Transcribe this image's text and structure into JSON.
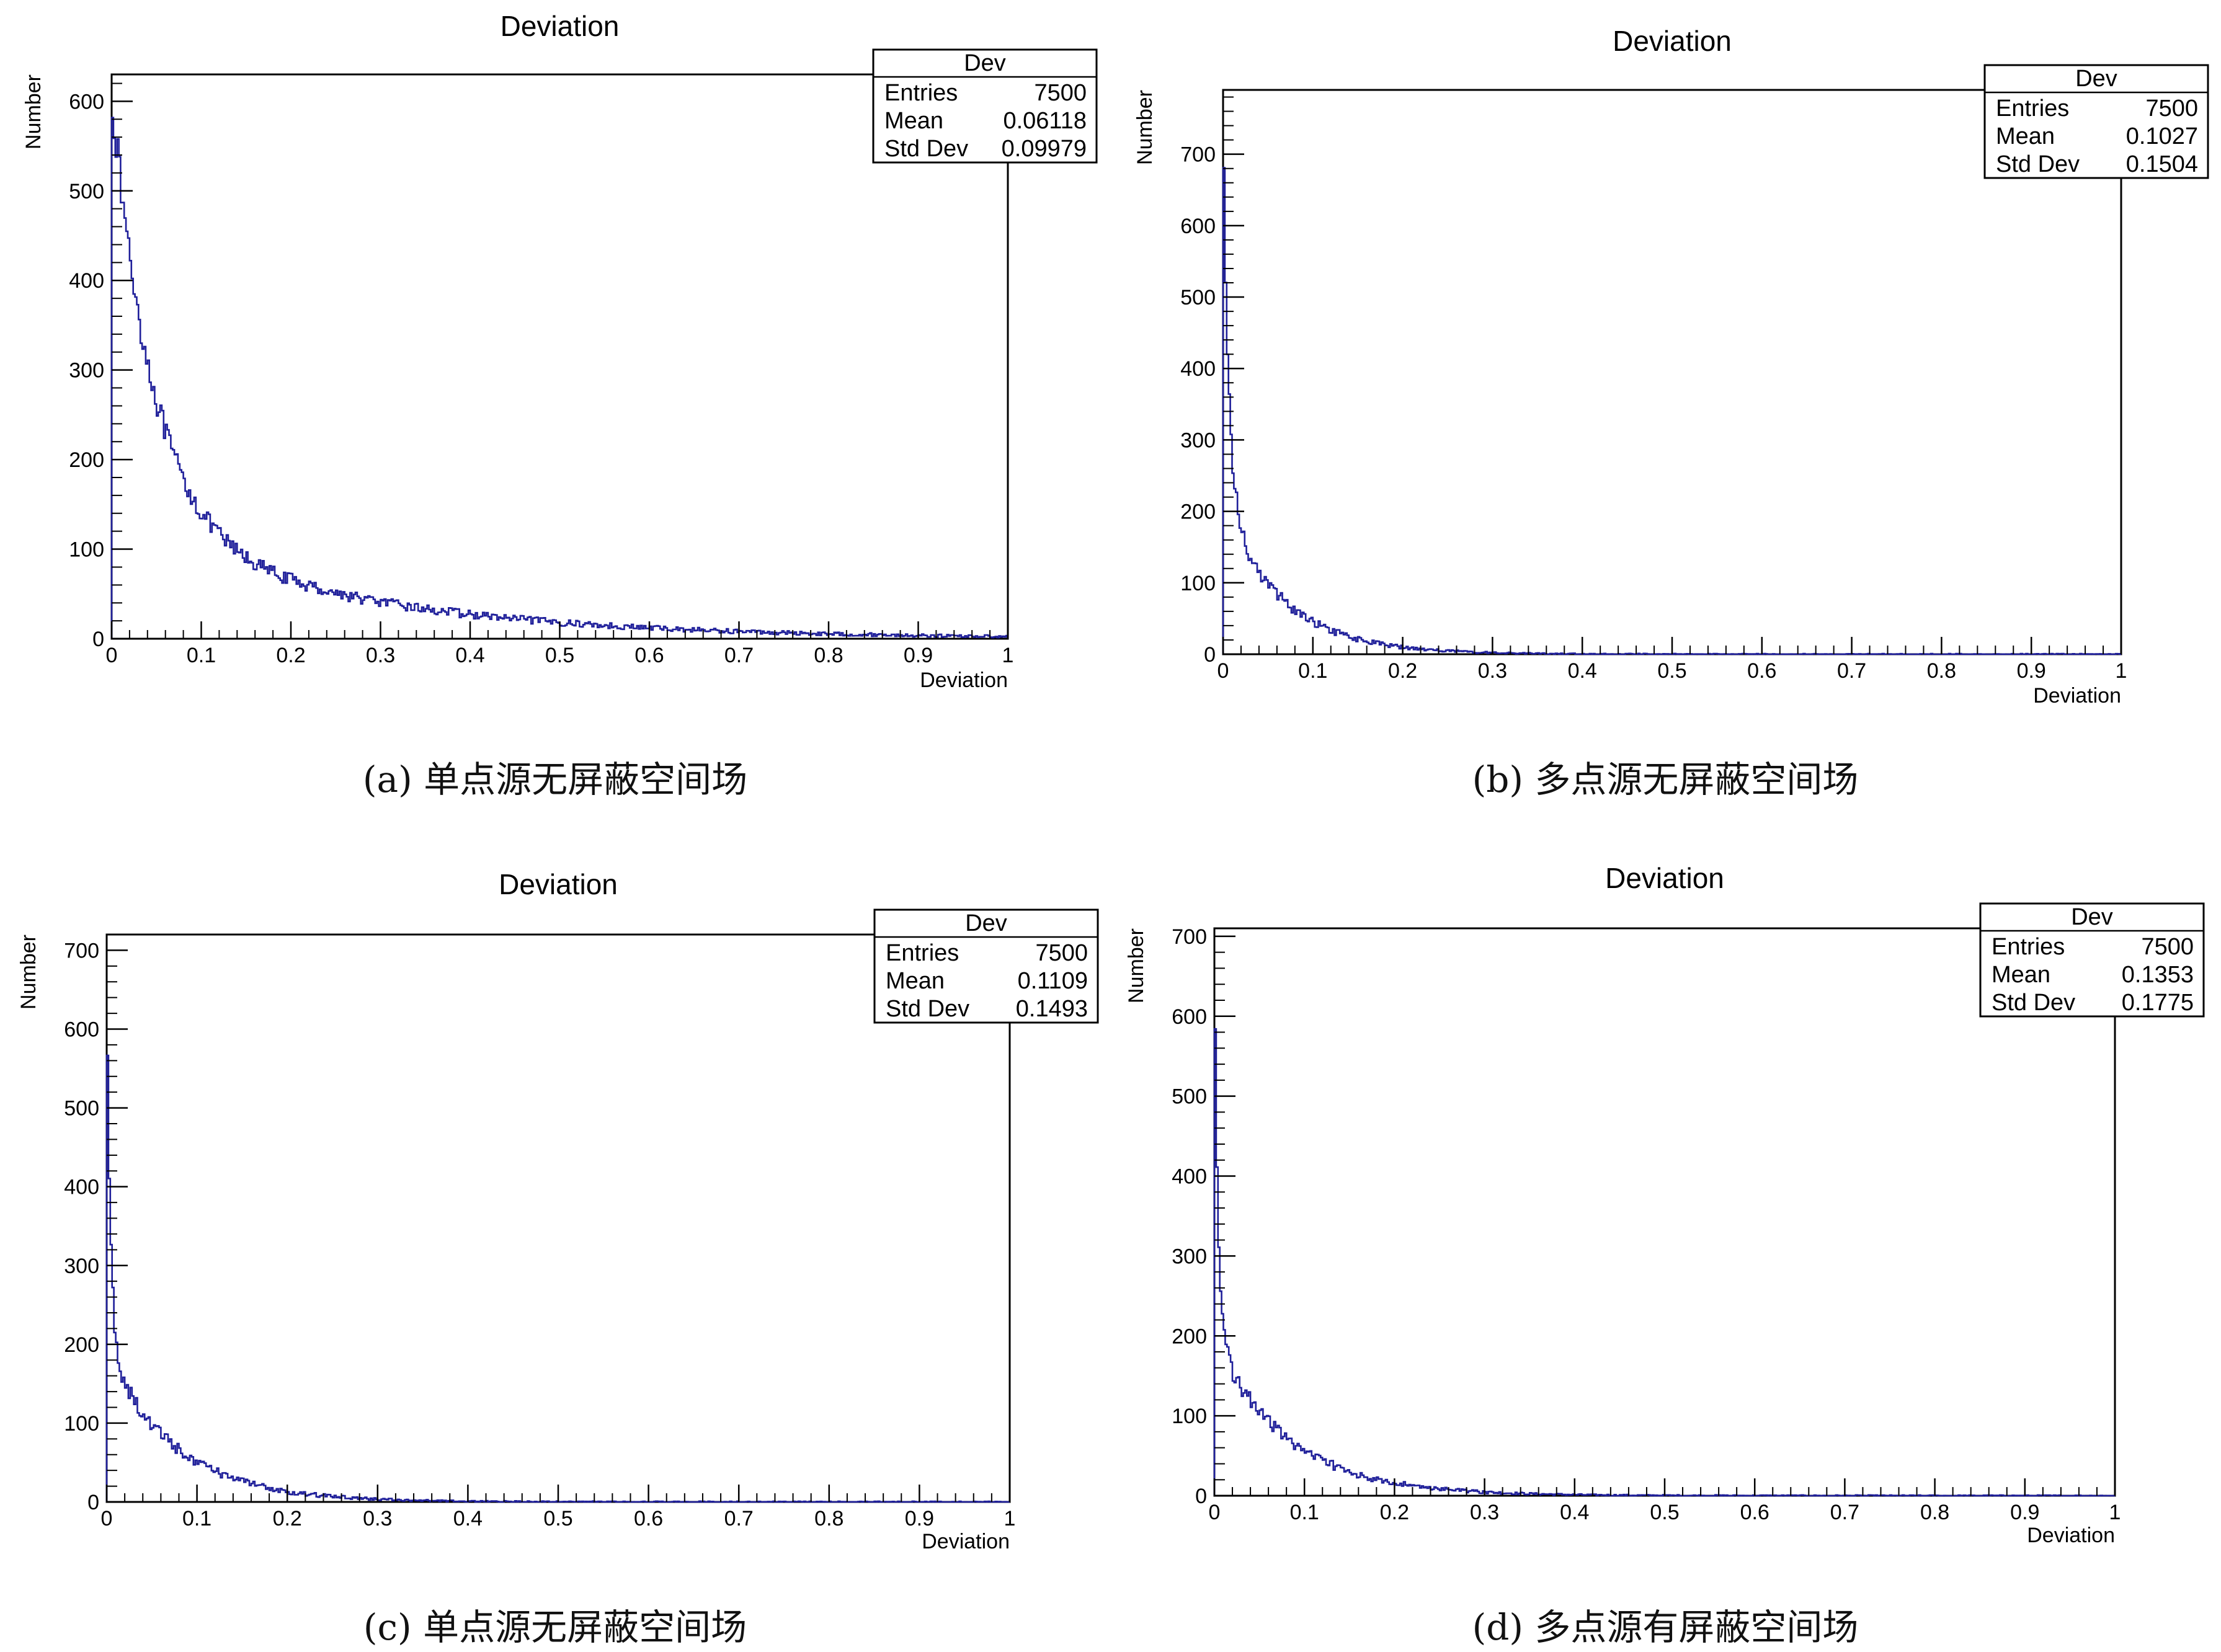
{
  "chart_data": [
    {
      "type": "bar",
      "title": "Deviation",
      "xlabel": "Deviation",
      "ylabel": "Number",
      "xlim": [
        0,
        1
      ],
      "ylim": [
        0,
        630
      ],
      "xticks": [
        "0",
        "0.1",
        "0.2",
        "0.3",
        "0.4",
        "0.5",
        "0.6",
        "0.7",
        "0.8",
        "0.9",
        "1"
      ],
      "yticks": [
        "0",
        "100",
        "200",
        "300",
        "400",
        "500",
        "600"
      ],
      "stats": {
        "name": "Dev",
        "entries_label": "Entries",
        "entries": "7500",
        "mean_label": "Mean",
        "mean": "0.06118",
        "std_label": "Std Dev",
        "std": "0.09979"
      },
      "curve": {
        "peak": 610,
        "a1": 0.78,
        "t1": 0.045,
        "a2": 0.22,
        "t2": 0.25
      },
      "caption": "(a) 单点源无屏蔽空间场"
    },
    {
      "type": "bar",
      "title": "Deviation",
      "xlabel": "Deviation",
      "ylabel": "Number",
      "xlim": [
        0,
        1
      ],
      "ylim": [
        0,
        790
      ],
      "xticks": [
        "0",
        "0.1",
        "0.2",
        "0.3",
        "0.4",
        "0.5",
        "0.6",
        "0.7",
        "0.8",
        "0.9",
        "1"
      ],
      "yticks": [
        "0",
        "100",
        "200",
        "300",
        "400",
        "500",
        "600",
        "700"
      ],
      "stats": {
        "name": "Dev",
        "entries_label": "Entries",
        "entries": "7500",
        "mean_label": "Mean",
        "mean": "0.1027",
        "std_label": "Std Dev",
        "std": "0.1504"
      },
      "curve": {
        "peak": 760,
        "a1": 0.72,
        "t1": 0.006,
        "a2": 0.28,
        "t2": 0.065
      },
      "caption": "(b) 多点源无屏蔽空间场"
    },
    {
      "type": "bar",
      "title": "Deviation",
      "xlabel": "Deviation",
      "ylabel": "Number",
      "xlim": [
        0,
        1
      ],
      "ylim": [
        0,
        720
      ],
      "xticks": [
        "0",
        "0.1",
        "0.2",
        "0.3",
        "0.4",
        "0.5",
        "0.6",
        "0.7",
        "0.8",
        "0.9",
        "1"
      ],
      "yticks": [
        "0",
        "100",
        "200",
        "300",
        "400",
        "500",
        "600",
        "700"
      ],
      "stats": {
        "name": "Dev",
        "entries_label": "Entries",
        "entries": "7500",
        "mean_label": "Mean",
        "mean": "0.1109",
        "std_label": "Std Dev",
        "std": "0.1493"
      },
      "curve": {
        "peak": 690,
        "a1": 0.72,
        "t1": 0.004,
        "a2": 0.28,
        "t2": 0.075
      },
      "caption": "(c) 单点源无屏蔽空间场"
    },
    {
      "type": "bar",
      "title": "Deviation",
      "xlabel": "Deviation",
      "ylabel": "Number",
      "xlim": [
        0,
        1
      ],
      "ylim": [
        0,
        710
      ],
      "xticks": [
        "0",
        "0.1",
        "0.2",
        "0.3",
        "0.4",
        "0.5",
        "0.6",
        "0.7",
        "0.8",
        "0.9",
        "1"
      ],
      "yticks": [
        "0",
        "100",
        "200",
        "300",
        "400",
        "500",
        "600",
        "700"
      ],
      "stats": {
        "name": "Dev",
        "entries_label": "Entries",
        "entries": "7500",
        "mean_label": "Mean",
        "mean": "0.1353",
        "std_label": "Std Dev",
        "std": "0.1775"
      },
      "curve": {
        "peak": 680,
        "a1": 0.71,
        "t1": 0.004,
        "a2": 0.29,
        "t2": 0.08
      },
      "caption": "(d) 多点源有屏蔽空间场"
    }
  ]
}
